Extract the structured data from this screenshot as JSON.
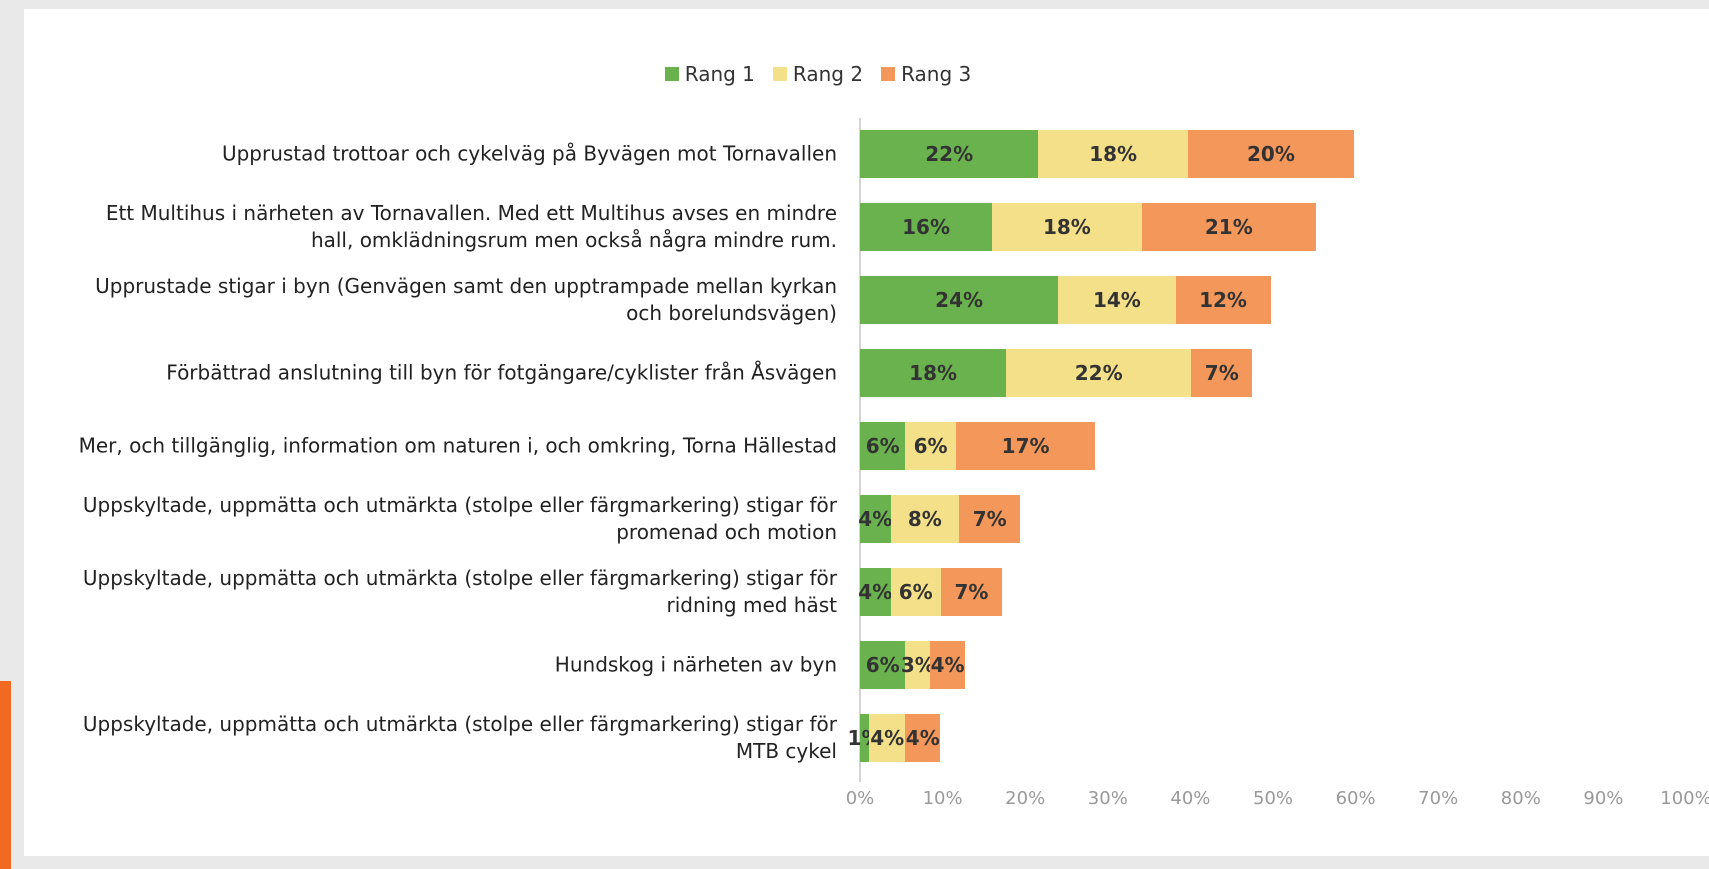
{
  "chart_data": {
    "type": "stacked_barh",
    "categories": [
      "Upprustad trottoar och cykelväg på Byvägen mot Tornavallen",
      "Ett Multihus i närheten av Tornavallen. Med ett Multihus avses en mindre\nhall, omklädningsrum men också några  mindre rum.",
      "Upprustade stigar i byn (Genvägen samt den upptrampade mellan kyrkan\noch borelundsvägen)",
      "Förbättrad anslutning till byn för fotgängare/cyklister från Åsvägen",
      "Mer, och tillgänglig, information om naturen i, och omkring, Torna Hällestad",
      "Uppskyltade, uppmätta och utmärkta (stolpe eller färgmarkering) stigar för\npromenad och motion",
      "Uppskyltade, uppmätta och utmärkta (stolpe eller färgmarkering) stigar för\nridning med häst",
      "Hundskog i närheten av byn",
      "Uppskyltade, uppmätta och utmärkta (stolpe eller färgmarkering) stigar för\nMTB cykel"
    ],
    "series": [
      {
        "name": "Rang 1",
        "color": "#6ab24e",
        "values": [
          21.6,
          16.0,
          24.0,
          17.7,
          5.5,
          3.7,
          3.7,
          5.5,
          1.1
        ],
        "value_labels": [
          "22%",
          "16%",
          "24%",
          "18%",
          "6%",
          "4%",
          "4%",
          "6%",
          "1%"
        ]
      },
      {
        "name": "Rang 2",
        "color": "#f5e08a",
        "values": [
          18.1,
          18.1,
          14.2,
          22.4,
          6.1,
          8.3,
          6.1,
          3.0,
          4.4
        ],
        "value_labels": [
          "18%",
          "18%",
          "14%",
          "22%",
          "6%",
          "8%",
          "6%",
          "3%",
          "4%"
        ]
      },
      {
        "name": "Rang 3",
        "color": "#f3975b",
        "values": [
          20.1,
          21.1,
          11.5,
          7.4,
          16.9,
          7.4,
          7.4,
          4.2,
          4.2
        ],
        "value_labels": [
          "20%",
          "21%",
          "12%",
          "7%",
          "17%",
          "7%",
          "7%",
          "4%",
          "4%"
        ]
      }
    ],
    "xlim": [
      0,
      100
    ],
    "xticks": [
      {
        "value": 0,
        "label": "0%"
      },
      {
        "value": 10,
        "label": "10%"
      },
      {
        "value": 20,
        "label": "20%"
      },
      {
        "value": 30,
        "label": "30%"
      },
      {
        "value": 40,
        "label": "40%"
      },
      {
        "value": 50,
        "label": "50%"
      },
      {
        "value": 60,
        "label": "60%"
      },
      {
        "value": 70,
        "label": "70%"
      },
      {
        "value": 80,
        "label": "80%"
      },
      {
        "value": 90,
        "label": "90%"
      },
      {
        "value": 100,
        "label": "100%"
      }
    ],
    "legend": "top"
  }
}
